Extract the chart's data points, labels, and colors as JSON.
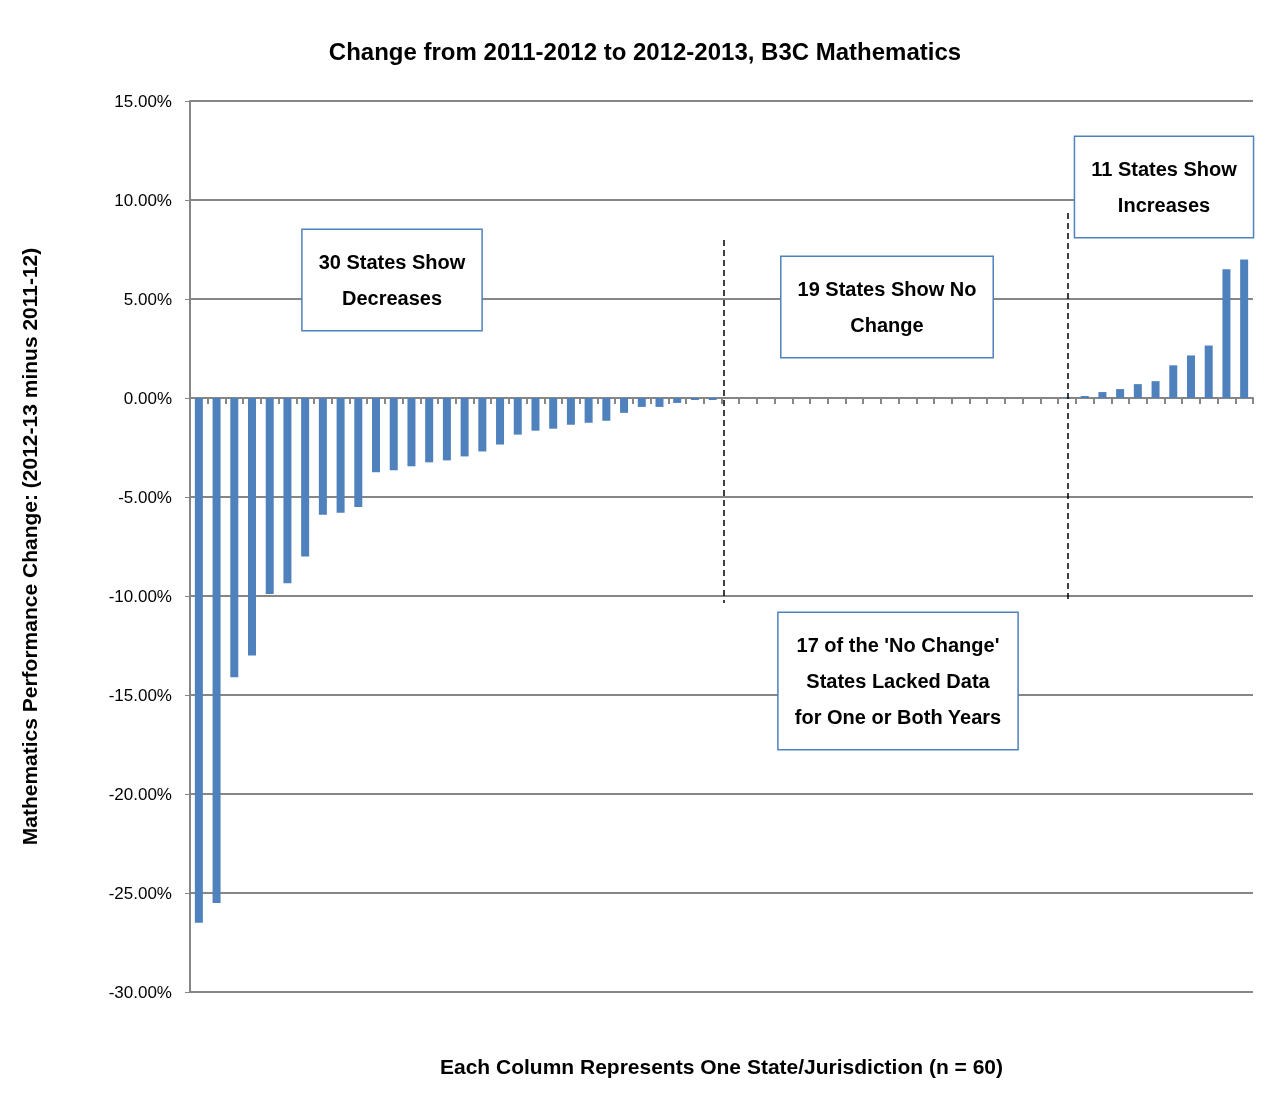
{
  "chart_data": {
    "type": "bar",
    "title": "Change from 2011-2012 to 2012-2013, B3C Mathematics",
    "xlabel": "Each Column Represents One State/Jurisdiction (n = 60)",
    "ylabel": "Mathematics Performance Change: (2012-13 minus 2011-12)",
    "categories": [
      null,
      null,
      null,
      null,
      null,
      null,
      null,
      null,
      null,
      null,
      null,
      null,
      null,
      null,
      null,
      null,
      null,
      null,
      null,
      null,
      null,
      null,
      null,
      null,
      null,
      null,
      null,
      null,
      null,
      null,
      null,
      null,
      null,
      null,
      null,
      null,
      null,
      null,
      null,
      null,
      null,
      null,
      null,
      null,
      null,
      null,
      null,
      null,
      null,
      null,
      null,
      null,
      null,
      null,
      null,
      null,
      null,
      null,
      null,
      null
    ],
    "values": [
      -26.5,
      -25.5,
      -14.1,
      -13.0,
      -9.9,
      -9.35,
      -8.0,
      -5.9,
      -5.8,
      -5.5,
      -3.75,
      -3.65,
      -3.45,
      -3.25,
      -3.15,
      -2.95,
      -2.7,
      -2.35,
      -1.85,
      -1.65,
      -1.55,
      -1.35,
      -1.25,
      -1.15,
      -0.75,
      -0.45,
      -0.45,
      -0.25,
      -0.1,
      -0.1,
      0,
      0,
      0,
      0,
      0,
      0,
      0,
      0,
      0,
      0,
      0,
      0,
      0,
      0,
      0,
      0,
      0,
      0,
      0,
      0.05,
      0.1,
      0.3,
      0.45,
      0.7,
      0.85,
      1.65,
      2.15,
      2.65,
      6.5,
      7.0
    ],
    "color": "#4f81bd",
    "ylim": [
      -30,
      15
    ],
    "yticks": [
      {
        "value": -30,
        "label": "-30.00%"
      },
      {
        "value": -25,
        "label": "-25.00%"
      },
      {
        "value": -20,
        "label": "-20.00%"
      },
      {
        "value": -15,
        "label": "-15.00%"
      },
      {
        "value": -10,
        "label": "-10.00%"
      },
      {
        "value": -5,
        "label": "-5.00%"
      },
      {
        "value": 0,
        "label": "0.00%"
      },
      {
        "value": 5,
        "label": "5.00%"
      },
      {
        "value": 10,
        "label": "10.00%"
      },
      {
        "value": 15,
        "label": "15.00%"
      }
    ],
    "grid": "y",
    "annotations": [
      "30 States Show\nDecreases",
      "19 States Show No\nChange",
      "11 States Show\nIncreases",
      "17 of the 'No Change'\nStates Lacked Data\nfor One or Both Years"
    ]
  }
}
